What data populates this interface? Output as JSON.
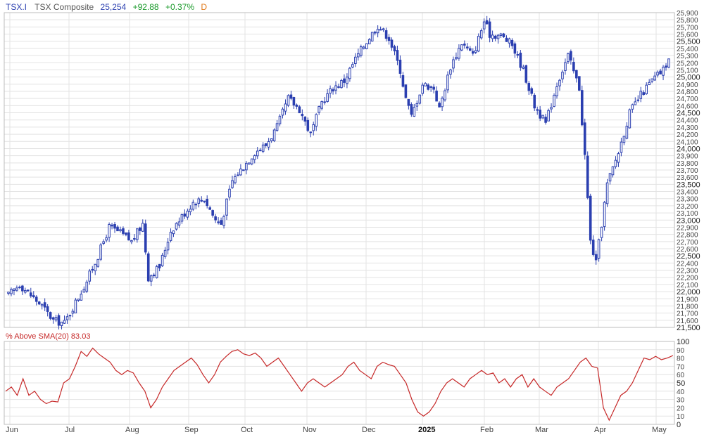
{
  "header": {
    "symbol": "TSX.I",
    "name": "TSX Composite",
    "last": "25,254",
    "change": "+92.88",
    "change_pct": "+0.37%",
    "period": "D"
  },
  "indicator": {
    "label": "% Above SMA(20) 83.03",
    "color": "#c62828"
  },
  "colors": {
    "candle": "#2b3fb0",
    "grid": "#e3e3e3",
    "up": "#1a9a2a",
    "period": "#e0791a"
  },
  "chart_data": [
    {
      "type": "candlestick",
      "title": "TSX Composite",
      "ylim": [
        21500,
        25900
      ],
      "y_ticks": [
        21500,
        21600,
        21700,
        21800,
        21900,
        22000,
        22100,
        22200,
        22300,
        22400,
        22500,
        22600,
        22700,
        22800,
        22900,
        23000,
        23100,
        23200,
        23300,
        23400,
        23500,
        23600,
        23700,
        23800,
        23900,
        24000,
        24100,
        24200,
        24300,
        24400,
        24500,
        24600,
        24700,
        24800,
        24900,
        25000,
        25100,
        25200,
        25300,
        25400,
        25500,
        25600,
        25700,
        25800,
        25900
      ],
      "y_tick_labels": [
        "21,500",
        "21,600",
        "21,700",
        "21,800",
        "21,900",
        "22,000",
        "22,100",
        "22,200",
        "22,300",
        "22,400",
        "22,500",
        "22,600",
        "22,700",
        "22,800",
        "22,900",
        "23,000",
        "23,100",
        "23,200",
        "23,300",
        "23,400",
        "23,500",
        "23,600",
        "23,700",
        "23,800",
        "23,900",
        "24,000",
        "24,100",
        "24,200",
        "24,300",
        "24,400",
        "24,500",
        "24,600",
        "24,700",
        "24,800",
        "24,900",
        "25,000",
        "25,100",
        "25,200",
        "25,300",
        "25,400",
        "25,500",
        "25,600",
        "25,700",
        "25,800",
        "25,900"
      ],
      "x_months": [
        "Jun",
        "Jul",
        "Aug",
        "Sep",
        "Oct",
        "Nov",
        "Dec",
        "2025",
        "Feb",
        "Mar",
        "Apr",
        "May"
      ],
      "close_path": [
        [
          0,
          21950
        ],
        [
          4,
          22100
        ],
        [
          8,
          21950
        ],
        [
          12,
          21800
        ],
        [
          16,
          21600
        ],
        [
          20,
          21560
        ],
        [
          24,
          21850
        ],
        [
          28,
          22150
        ],
        [
          32,
          22500
        ],
        [
          36,
          22900
        ],
        [
          40,
          22820
        ],
        [
          44,
          22700
        ],
        [
          48,
          22950
        ],
        [
          50,
          22200
        ],
        [
          54,
          22350
        ],
        [
          58,
          22850
        ],
        [
          62,
          23050
        ],
        [
          66,
          23250
        ],
        [
          70,
          23300
        ],
        [
          74,
          23000
        ],
        [
          76,
          22950
        ],
        [
          80,
          23550
        ],
        [
          84,
          23750
        ],
        [
          88,
          23950
        ],
        [
          92,
          24050
        ],
        [
          96,
          24300
        ],
        [
          100,
          24700
        ],
        [
          104,
          24550
        ],
        [
          108,
          24200
        ],
        [
          112,
          24650
        ],
        [
          116,
          24850
        ],
        [
          120,
          24950
        ],
        [
          124,
          25250
        ],
        [
          128,
          25500
        ],
        [
          132,
          25720
        ],
        [
          136,
          25550
        ],
        [
          140,
          25100
        ],
        [
          142,
          24700
        ],
        [
          144,
          24450
        ],
        [
          148,
          24900
        ],
        [
          152,
          24850
        ],
        [
          154,
          24550
        ],
        [
          158,
          25150
        ],
        [
          162,
          25480
        ],
        [
          166,
          25300
        ],
        [
          170,
          25780
        ],
        [
          172,
          25600
        ],
        [
          176,
          25580
        ],
        [
          180,
          25450
        ],
        [
          184,
          25100
        ],
        [
          188,
          24600
        ],
        [
          192,
          24350
        ],
        [
          196,
          24900
        ],
        [
          200,
          25300
        ],
        [
          204,
          24850
        ],
        [
          206,
          23900
        ],
        [
          208,
          22700
        ],
        [
          210,
          22400
        ],
        [
          212,
          22950
        ],
        [
          214,
          23500
        ],
        [
          218,
          23950
        ],
        [
          222,
          24500
        ],
        [
          226,
          24750
        ],
        [
          230,
          24950
        ],
        [
          234,
          25100
        ],
        [
          236,
          25254
        ]
      ],
      "last_close": 25254
    },
    {
      "type": "line",
      "title": "% Above SMA(20)",
      "ylim": [
        0,
        100
      ],
      "y_ticks": [
        0,
        10,
        20,
        30,
        40,
        50,
        60,
        70,
        80,
        90,
        100
      ],
      "last_value": 83.03,
      "points": [
        [
          0,
          40
        ],
        [
          2,
          45
        ],
        [
          4,
          35
        ],
        [
          6,
          55
        ],
        [
          8,
          35
        ],
        [
          10,
          40
        ],
        [
          12,
          30
        ],
        [
          14,
          25
        ],
        [
          16,
          28
        ],
        [
          18,
          27
        ],
        [
          20,
          50
        ],
        [
          22,
          55
        ],
        [
          24,
          70
        ],
        [
          26,
          88
        ],
        [
          28,
          82
        ],
        [
          30,
          92
        ],
        [
          32,
          85
        ],
        [
          34,
          80
        ],
        [
          36,
          75
        ],
        [
          38,
          65
        ],
        [
          40,
          60
        ],
        [
          42,
          65
        ],
        [
          44,
          62
        ],
        [
          46,
          50
        ],
        [
          48,
          40
        ],
        [
          50,
          20
        ],
        [
          52,
          30
        ],
        [
          54,
          45
        ],
        [
          56,
          55
        ],
        [
          58,
          65
        ],
        [
          60,
          70
        ],
        [
          62,
          75
        ],
        [
          64,
          80
        ],
        [
          66,
          72
        ],
        [
          68,
          60
        ],
        [
          70,
          50
        ],
        [
          72,
          60
        ],
        [
          74,
          75
        ],
        [
          76,
          82
        ],
        [
          78,
          88
        ],
        [
          80,
          90
        ],
        [
          82,
          85
        ],
        [
          84,
          83
        ],
        [
          86,
          86
        ],
        [
          88,
          80
        ],
        [
          90,
          70
        ],
        [
          92,
          75
        ],
        [
          94,
          80
        ],
        [
          96,
          70
        ],
        [
          98,
          60
        ],
        [
          100,
          50
        ],
        [
          102,
          40
        ],
        [
          104,
          50
        ],
        [
          106,
          55
        ],
        [
          108,
          50
        ],
        [
          110,
          45
        ],
        [
          112,
          50
        ],
        [
          114,
          55
        ],
        [
          116,
          60
        ],
        [
          118,
          70
        ],
        [
          120,
          75
        ],
        [
          122,
          65
        ],
        [
          124,
          60
        ],
        [
          126,
          55
        ],
        [
          128,
          70
        ],
        [
          130,
          75
        ],
        [
          132,
          72
        ],
        [
          134,
          70
        ],
        [
          136,
          60
        ],
        [
          138,
          50
        ],
        [
          140,
          30
        ],
        [
          142,
          15
        ],
        [
          144,
          10
        ],
        [
          146,
          15
        ],
        [
          148,
          25
        ],
        [
          150,
          40
        ],
        [
          152,
          50
        ],
        [
          154,
          55
        ],
        [
          156,
          50
        ],
        [
          158,
          45
        ],
        [
          160,
          55
        ],
        [
          162,
          60
        ],
        [
          164,
          65
        ],
        [
          166,
          60
        ],
        [
          168,
          62
        ],
        [
          170,
          50
        ],
        [
          172,
          55
        ],
        [
          174,
          45
        ],
        [
          176,
          55
        ],
        [
          178,
          60
        ],
        [
          180,
          45
        ],
        [
          182,
          55
        ],
        [
          184,
          45
        ],
        [
          186,
          40
        ],
        [
          188,
          35
        ],
        [
          190,
          45
        ],
        [
          192,
          50
        ],
        [
          194,
          55
        ],
        [
          196,
          65
        ],
        [
          198,
          75
        ],
        [
          200,
          80
        ],
        [
          202,
          70
        ],
        [
          204,
          68
        ],
        [
          206,
          20
        ],
        [
          208,
          5
        ],
        [
          210,
          20
        ],
        [
          212,
          35
        ],
        [
          214,
          40
        ],
        [
          216,
          50
        ],
        [
          218,
          65
        ],
        [
          220,
          80
        ],
        [
          222,
          78
        ],
        [
          224,
          82
        ],
        [
          226,
          78
        ],
        [
          228,
          80
        ],
        [
          230,
          83.03
        ]
      ]
    }
  ]
}
